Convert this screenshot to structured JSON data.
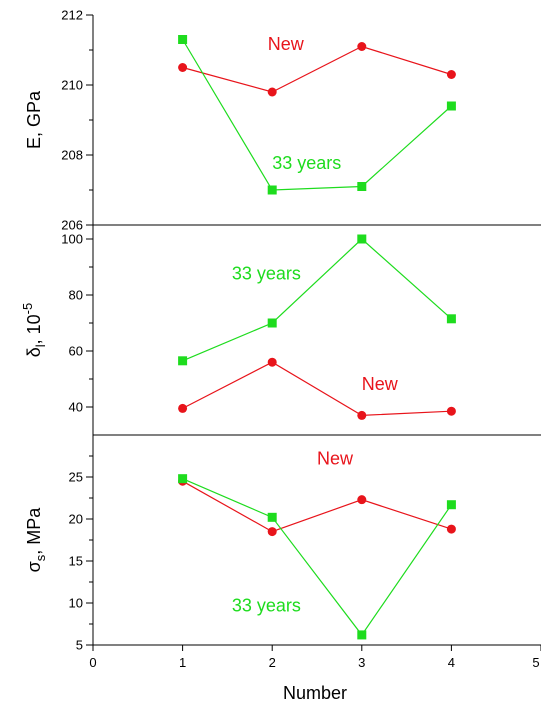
{
  "chart_data": {
    "type": "line",
    "xlabel": "Number",
    "x_ticks": [
      0,
      1,
      2,
      3,
      4,
      5
    ],
    "xlim": [
      0,
      5
    ],
    "colors": {
      "new": "#e8141b",
      "aged": "#1edc1e"
    },
    "panels": [
      {
        "id": "E",
        "ylabel_main": "E, GPa",
        "ylabel_sub": "",
        "ylabel_sup": "",
        "ylim": [
          206,
          212
        ],
        "y_ticks": [
          206,
          208,
          210,
          212
        ],
        "y_minor": [
          207,
          209,
          211
        ],
        "series": [
          {
            "key": "new",
            "label": "New",
            "marker": "circle",
            "x": [
              1,
              2,
              3,
              4
            ],
            "y": [
              210.5,
              209.8,
              211.1,
              210.3
            ]
          },
          {
            "key": "aged",
            "label": "33 years",
            "marker": "square",
            "x": [
              1,
              2,
              3,
              4
            ],
            "y": [
              211.3,
              207.0,
              207.1,
              209.4
            ]
          }
        ],
        "annotations": [
          {
            "series": "new",
            "text": "New",
            "x": 1.95,
            "y": 211.0
          },
          {
            "series": "aged",
            "text": "33 years",
            "x": 2.0,
            "y": 207.6
          }
        ]
      },
      {
        "id": "delta",
        "ylabel_main": "δ",
        "ylabel_sub": "l",
        "ylabel_post": ", 10",
        "ylabel_sup": "-5",
        "ylim": [
          30,
          105
        ],
        "y_ticks": [
          40,
          60,
          80,
          100
        ],
        "y_minor": [
          50,
          70,
          90
        ],
        "series": [
          {
            "key": "aged",
            "label": "33 years",
            "marker": "square",
            "x": [
              1,
              2,
              3,
              4
            ],
            "y": [
              56.5,
              70.0,
              100.0,
              71.5
            ]
          },
          {
            "key": "new",
            "label": "New",
            "marker": "circle",
            "x": [
              1,
              2,
              3,
              4
            ],
            "y": [
              39.5,
              56.0,
              37.0,
              38.5
            ]
          }
        ],
        "annotations": [
          {
            "series": "aged",
            "text": "33 years",
            "x": 1.55,
            "y": 85.5
          },
          {
            "series": "new",
            "text": "New",
            "x": 3.0,
            "y": 46.0
          }
        ]
      },
      {
        "id": "sigma",
        "ylabel_main": "σ",
        "ylabel_sub": "s",
        "ylabel_post": ", MPa",
        "ylabel_sup": "",
        "ylim": [
          5,
          30
        ],
        "y_ticks": [
          5,
          10,
          15,
          20,
          25
        ],
        "y_minor": [
          7.5,
          12.5,
          17.5,
          22.5,
          27.5
        ],
        "series": [
          {
            "key": "new",
            "label": "New",
            "marker": "circle",
            "x": [
              1,
              2,
              3,
              4
            ],
            "y": [
              24.5,
              18.5,
              22.3,
              18.8
            ]
          },
          {
            "key": "aged",
            "label": "33 years",
            "marker": "square",
            "x": [
              1,
              2,
              3,
              4
            ],
            "y": [
              24.8,
              20.2,
              6.2,
              21.7
            ]
          }
        ],
        "annotations": [
          {
            "series": "new",
            "text": "New",
            "x": 2.5,
            "y": 26.5
          },
          {
            "series": "aged",
            "text": "33 years",
            "x": 1.55,
            "y": 9.0
          }
        ]
      }
    ]
  }
}
